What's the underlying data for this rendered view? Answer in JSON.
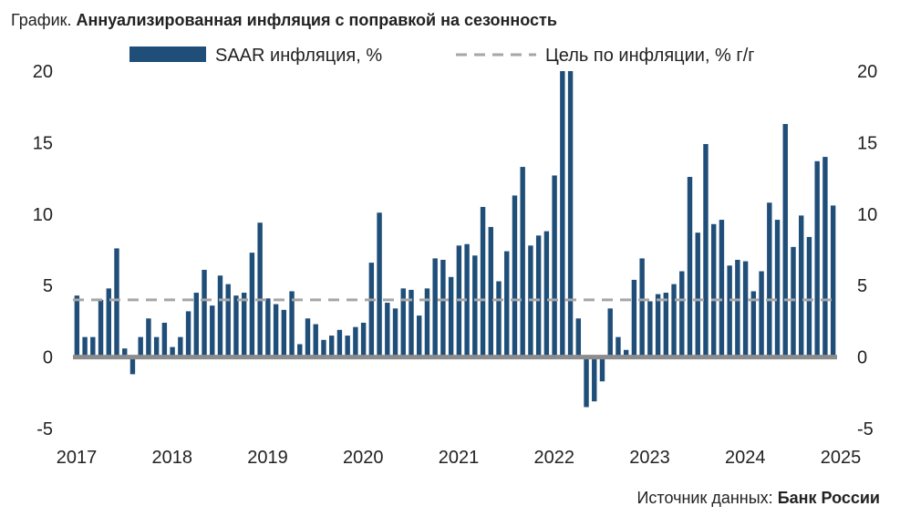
{
  "title": {
    "prefix": "График.",
    "main": "Аннуализированная инфляция с поправкой на сезонность"
  },
  "source": {
    "label": "Источник данных:",
    "name": "Банк России"
  },
  "colors": {
    "bar": "#1f4e79",
    "target": "#a6a6a6",
    "zero": "#8c8c8c",
    "text": "#222222"
  },
  "chart_data": {
    "type": "bar",
    "start": "2017-01",
    "frequency": "monthly",
    "ylim": [
      -5,
      20
    ],
    "y_ticks": [
      -5,
      0,
      5,
      10,
      15,
      20
    ],
    "y_tick_labels": [
      "-5",
      "0",
      "5",
      "10",
      "15",
      "20"
    ],
    "x_ticks": [
      "2017",
      "2018",
      "2019",
      "2020",
      "2021",
      "2022",
      "2023",
      "2024",
      "2025"
    ],
    "secondary_y_axis": true,
    "grid": false,
    "legend_position": "top",
    "target_line": 4,
    "series": [
      {
        "name": "SAAR инфляция, %",
        "style": "bar",
        "values": [
          4.3,
          1.4,
          1.4,
          4.0,
          4.8,
          7.6,
          0.6,
          -1.2,
          1.4,
          2.7,
          1.4,
          2.4,
          0.7,
          1.4,
          3.2,
          4.5,
          6.1,
          3.6,
          5.7,
          5.1,
          4.3,
          4.5,
          7.3,
          9.4,
          4.1,
          3.7,
          3.3,
          4.6,
          0.9,
          2.7,
          2.3,
          1.2,
          1.5,
          1.9,
          1.5,
          2.1,
          2.4,
          6.6,
          10.1,
          3.8,
          3.4,
          4.8,
          4.7,
          2.9,
          4.8,
          6.9,
          6.8,
          5.6,
          7.8,
          7.9,
          7.1,
          10.5,
          9.1,
          5.3,
          7.4,
          11.3,
          13.3,
          7.8,
          8.5,
          8.8,
          12.7,
          20.0,
          20.0,
          2.7,
          -3.5,
          -3.1,
          -1.7,
          3.4,
          1.4,
          0.5,
          5.4,
          6.9,
          3.9,
          4.4,
          4.5,
          5.1,
          6.0,
          12.6,
          8.7,
          14.9,
          9.3,
          9.6,
          6.4,
          6.8,
          6.7,
          4.6,
          6.0,
          10.8,
          9.6,
          16.3,
          7.7,
          9.9,
          8.4,
          13.7,
          14.0,
          10.6
        ]
      },
      {
        "name": "Цель по инфляции, % г/г",
        "style": "dashed-line",
        "value": 4
      }
    ]
  }
}
